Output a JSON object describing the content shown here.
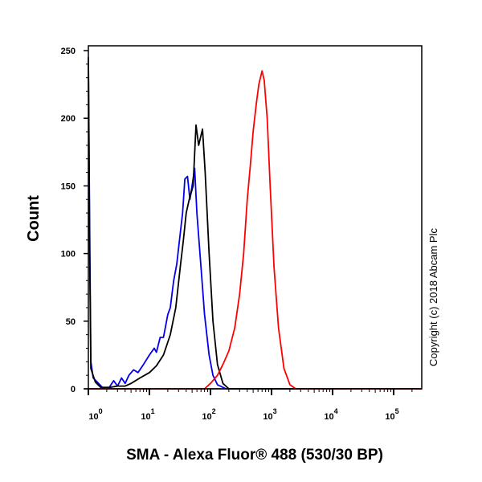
{
  "chart_data": {
    "type": "line",
    "title": "",
    "xlabel": "SMA - Alexa Fluor® 488 (530/30 BP)",
    "ylabel": "Count",
    "xscale": "log",
    "xlim": [
      1,
      290000
    ],
    "ylim": [
      0,
      250
    ],
    "yticks": [
      0,
      50,
      100,
      150,
      200,
      250
    ],
    "xticks": [
      {
        "value": 1,
        "base": "10",
        "exp": "0"
      },
      {
        "value": 10,
        "base": "10",
        "exp": "1"
      },
      {
        "value": 100,
        "base": "10",
        "exp": "2"
      },
      {
        "value": 1000,
        "base": "10",
        "exp": "3"
      },
      {
        "value": 10000,
        "base": "10",
        "exp": "4"
      },
      {
        "value": 100000,
        "base": "10",
        "exp": "5"
      }
    ],
    "grid": false,
    "annotation": "Copyright (c) 2018 Abcam Plc",
    "series": [
      {
        "color": "#0000ee",
        "points": [
          [
            1,
            245
          ],
          [
            1.05,
            120
          ],
          [
            1.1,
            20
          ],
          [
            1.2,
            8
          ],
          [
            1.4,
            5
          ],
          [
            1.7,
            1
          ],
          [
            2.2,
            1
          ],
          [
            2.6,
            6
          ],
          [
            3,
            2
          ],
          [
            3.5,
            8
          ],
          [
            4,
            4
          ],
          [
            4.6,
            10
          ],
          [
            5.5,
            14
          ],
          [
            6.5,
            12
          ],
          [
            8,
            18
          ],
          [
            10,
            25
          ],
          [
            12,
            30
          ],
          [
            13,
            27
          ],
          [
            15,
            38
          ],
          [
            17,
            38
          ],
          [
            20,
            55
          ],
          [
            22,
            60
          ],
          [
            25,
            80
          ],
          [
            28,
            92
          ],
          [
            32,
            115
          ],
          [
            35,
            130
          ],
          [
            38,
            155
          ],
          [
            42,
            157
          ],
          [
            46,
            140
          ],
          [
            50,
            150
          ],
          [
            55,
            163
          ],
          [
            60,
            130
          ],
          [
            70,
            90
          ],
          [
            80,
            55
          ],
          [
            95,
            25
          ],
          [
            110,
            10
          ],
          [
            130,
            3
          ],
          [
            180,
            0
          ],
          [
            290000,
            0
          ]
        ]
      },
      {
        "color": "#000000",
        "points": [
          [
            1,
            245
          ],
          [
            1.05,
            100
          ],
          [
            1.1,
            15
          ],
          [
            1.3,
            5
          ],
          [
            1.6,
            1
          ],
          [
            2.2,
            1
          ],
          [
            3,
            2
          ],
          [
            4,
            2
          ],
          [
            5,
            4
          ],
          [
            7,
            8
          ],
          [
            10,
            12
          ],
          [
            13,
            17
          ],
          [
            17,
            25
          ],
          [
            22,
            40
          ],
          [
            27,
            60
          ],
          [
            32,
            90
          ],
          [
            36,
            110
          ],
          [
            40,
            130
          ],
          [
            45,
            140
          ],
          [
            52,
            150
          ],
          [
            58,
            195
          ],
          [
            64,
            180
          ],
          [
            74,
            192
          ],
          [
            82,
            160
          ],
          [
            95,
            100
          ],
          [
            110,
            50
          ],
          [
            130,
            18
          ],
          [
            160,
            4
          ],
          [
            200,
            0
          ],
          [
            290000,
            0
          ]
        ]
      },
      {
        "color": "#ff0000",
        "points": [
          [
            1,
            0
          ],
          [
            80,
            0
          ],
          [
            100,
            4
          ],
          [
            130,
            10
          ],
          [
            160,
            18
          ],
          [
            200,
            28
          ],
          [
            250,
            45
          ],
          [
            300,
            70
          ],
          [
            350,
            100
          ],
          [
            400,
            140
          ],
          [
            450,
            165
          ],
          [
            500,
            190
          ],
          [
            560,
            210
          ],
          [
            620,
            225
          ],
          [
            700,
            235
          ],
          [
            760,
            228
          ],
          [
            850,
            200
          ],
          [
            950,
            150
          ],
          [
            1100,
            90
          ],
          [
            1300,
            45
          ],
          [
            1600,
            15
          ],
          [
            2000,
            3
          ],
          [
            2500,
            0
          ],
          [
            290000,
            0
          ]
        ]
      }
    ]
  }
}
